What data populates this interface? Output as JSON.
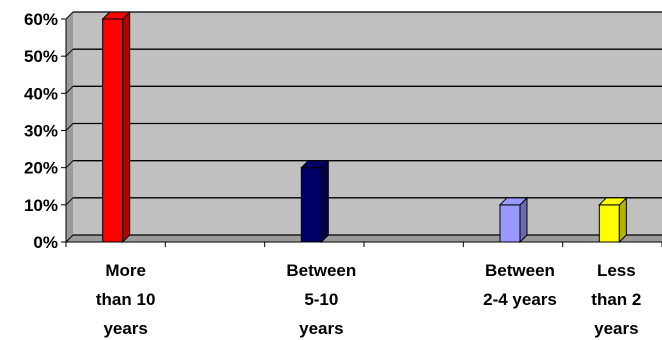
{
  "chart_data": {
    "type": "bar",
    "categories": [
      [
        "More",
        "than 10",
        "years"
      ],
      [
        "Between",
        "5-10",
        "years"
      ],
      [
        "Between",
        "2-4 years"
      ],
      [
        "Less",
        "than 2",
        "years"
      ]
    ],
    "values": [
      60,
      20,
      10,
      10
    ],
    "bar_colors": [
      "#ff0000",
      "#000066",
      "#9999ff",
      "#ffff00"
    ],
    "ylim": [
      0,
      60
    ],
    "yticks": [
      "0%",
      "10%",
      "20%",
      "30%",
      "40%",
      "50%",
      "60%"
    ],
    "grid": true,
    "plot_background": "#c0c0c0",
    "bar_style": "3d"
  }
}
